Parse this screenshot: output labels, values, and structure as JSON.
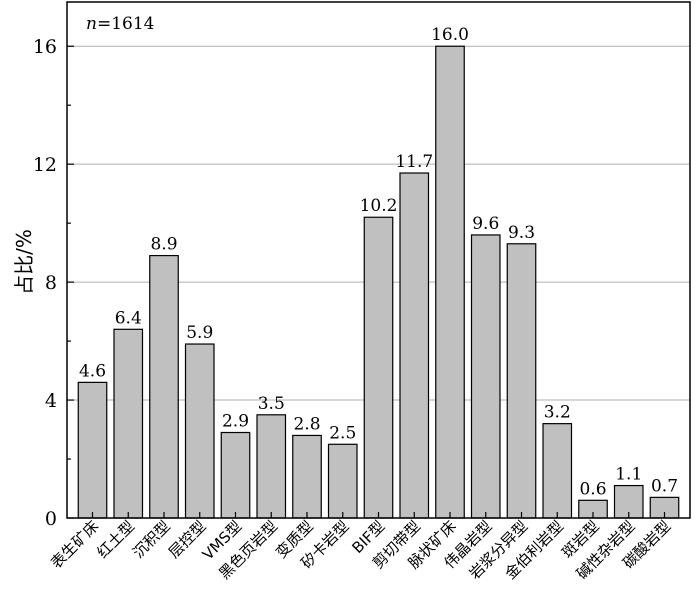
{
  "chart_data": {
    "type": "bar",
    "annotation": "1614",
    "annotation_var": "n",
    "ylabel": "占比/%",
    "ylim": [
      0,
      17.5
    ],
    "yticks": [
      0,
      4,
      8,
      12,
      16
    ],
    "grid": true,
    "categories": [
      "表生矿床",
      "红土型",
      "沉积型",
      "层控型",
      "VMS型",
      "黑色页岩型",
      "变质型",
      "矽卡岩型",
      "BIF型",
      "剪切带型",
      "脉状矿床",
      "伟晶岩型",
      "岩浆分异型",
      "金伯利岩型",
      "斑岩型",
      "碱性杂岩型",
      "碳酸岩型"
    ],
    "values": [
      4.6,
      6.4,
      8.9,
      5.9,
      2.9,
      3.5,
      2.8,
      2.5,
      10.2,
      11.7,
      16.0,
      9.6,
      9.3,
      3.2,
      0.6,
      1.1,
      0.7
    ],
    "value_labels": [
      "4.6",
      "6.4",
      "8.9",
      "5.9",
      "2.9",
      "3.5",
      "2.8",
      "2.5",
      "10.2",
      "11.7",
      "16.0",
      "9.6",
      "9.3",
      "3.2",
      "0.6",
      "1.1",
      "0.7"
    ],
    "bar_color": "#c0c0c0"
  }
}
